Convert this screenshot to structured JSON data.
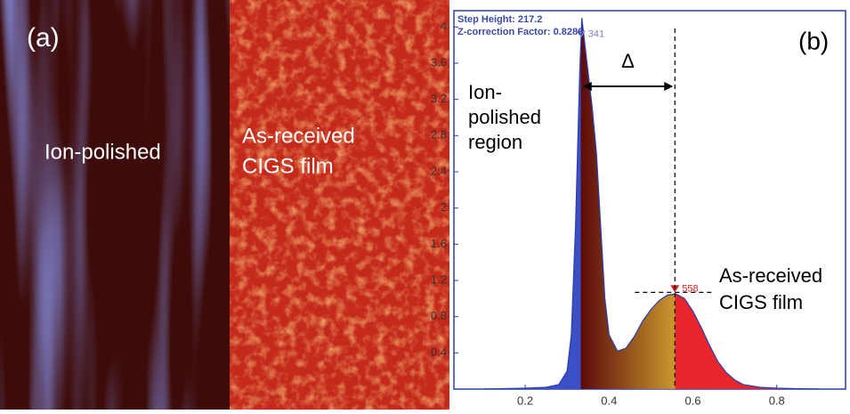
{
  "panel_a": {
    "label": "(a)",
    "left_text": "Ion-polished",
    "right_text": [
      "As-received",
      "CIGS film"
    ]
  },
  "chart_data": {
    "type": "area",
    "label": "(b)",
    "x": [
      0.1,
      0.2,
      0.25,
      0.28,
      0.3,
      0.31,
      0.32,
      0.33,
      0.335,
      0.34,
      0.35,
      0.36,
      0.37,
      0.38,
      0.39,
      0.4,
      0.42,
      0.44,
      0.46,
      0.48,
      0.5,
      0.52,
      0.54,
      0.56,
      0.58,
      0.6,
      0.62,
      0.64,
      0.66,
      0.68,
      0.7,
      0.72,
      0.76,
      0.8,
      0.9
    ],
    "values": [
      0,
      0.01,
      0.02,
      0.05,
      0.2,
      0.6,
      1.8,
      3.5,
      4.1,
      3.9,
      3.5,
      3.1,
      2.6,
      1.8,
      1.0,
      0.6,
      0.42,
      0.45,
      0.58,
      0.75,
      0.88,
      0.98,
      1.04,
      1.05,
      1.0,
      0.86,
      0.68,
      0.48,
      0.3,
      0.18,
      0.1,
      0.05,
      0.02,
      0.01,
      0
    ],
    "xlim": [
      0.03,
      0.964
    ],
    "ylim": [
      0,
      4.18
    ],
    "xticks": [
      0.2,
      0.4,
      0.6,
      0.8
    ],
    "yticks": [
      0.4,
      0.8,
      1.2,
      1.6,
      2.0,
      2.4,
      2.8,
      3.2,
      3.6,
      4.0
    ],
    "colors": {
      "low": "#3b50c4",
      "mid_start": "#5c0b0b",
      "mid_end": "#c9972c",
      "high": "#e8252a",
      "outline": "#2a3fb0"
    },
    "markers": [
      {
        "label": "341",
        "x": 0.333,
        "color": "#8080cc"
      },
      {
        "label": "558",
        "x": 0.557,
        "color": "#e02020"
      }
    ],
    "info": [
      "Step Height:  217.2",
      "Z-correction Factor: 0.8286"
    ],
    "delta": "Δ",
    "annotations": [
      [
        "Ion-",
        "polished",
        "region"
      ],
      [
        "As-received",
        "CIGS film"
      ]
    ]
  }
}
